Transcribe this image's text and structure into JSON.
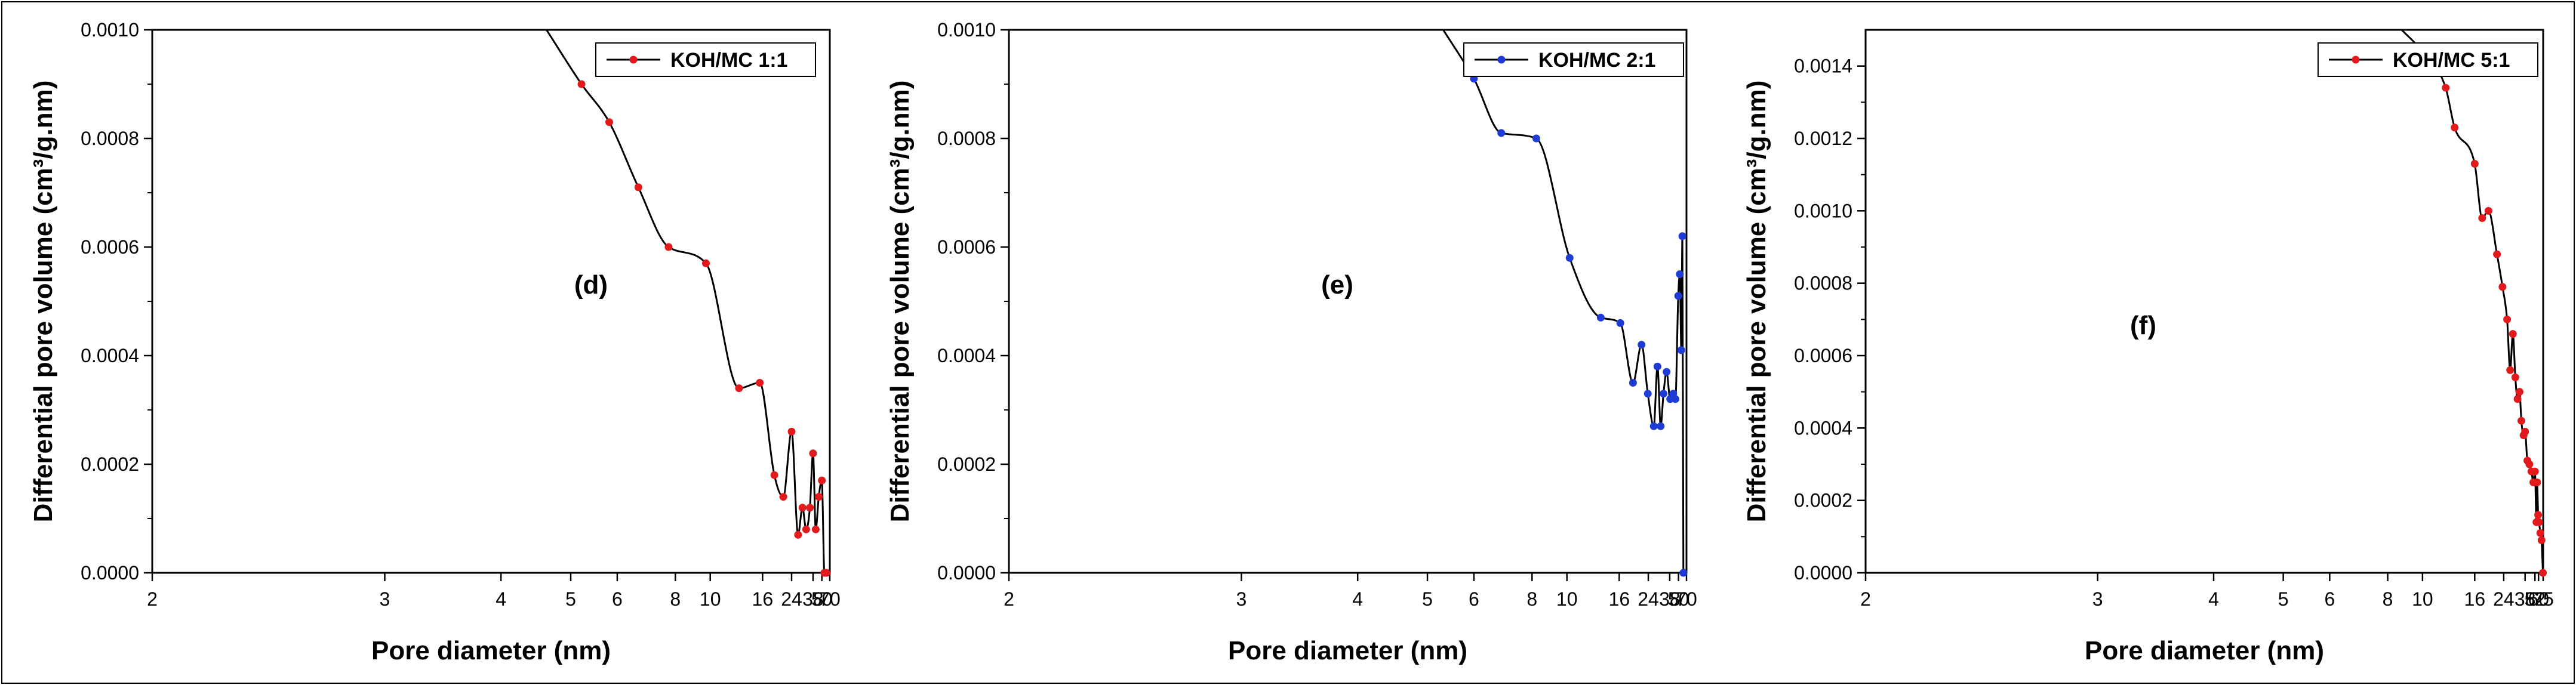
{
  "colors": {
    "line": "#000000",
    "frame": "#000000"
  },
  "chart_data": [
    {
      "type": "line",
      "panel_label": "(d)",
      "xlabel": "Pore diameter (nm)",
      "ylabel": "Differential pore volume (cm³/g.nm)",
      "xticks": [
        "2",
        "3",
        "4",
        "5",
        "6",
        "8",
        "10",
        "16",
        "24",
        "38",
        "50",
        "70"
      ],
      "yticks": [
        "0.0000",
        "0.0002",
        "0.0004",
        "0.0006",
        "0.0008",
        "0.0010"
      ],
      "ylim": [
        0,
        0.001
      ],
      "x_scale": "reciprocal",
      "legend": "top-right",
      "series": [
        {
          "name": "KOH/MC 1:1",
          "color": "#e31a1c",
          "x": [
            4.6,
            5.2,
            5.8,
            6.6,
            7.7,
            9.7,
            12.6,
            15.5,
            18.5,
            21.0,
            24.0,
            27.0,
            29.5,
            32.0,
            35.0,
            38.0,
            41.0,
            45.0,
            50.0,
            55.0,
            57.0,
            58.5,
            60.0
          ],
          "y": [
            0.001,
            0.0009,
            0.00083,
            0.00071,
            0.0006,
            0.00057,
            0.00034,
            0.00035,
            0.00018,
            0.00014,
            0.00026,
            7e-05,
            0.00012,
            8e-05,
            0.00012,
            0.00022,
            8e-05,
            0.00014,
            0.00017,
            0.0,
            0.0,
            0.0,
            0.0
          ]
        }
      ]
    },
    {
      "type": "line",
      "panel_label": "(e)",
      "xlabel": "Pore diameter (nm)",
      "ylabel": "Differential pore volume (cm³/g.nm)",
      "xticks": [
        "2",
        "3",
        "4",
        "5",
        "6",
        "8",
        "10",
        "16",
        "24",
        "38",
        "50",
        "70"
      ],
      "yticks": [
        "0.0000",
        "0.0002",
        "0.0004",
        "0.0006",
        "0.0008",
        "0.0010"
      ],
      "ylim": [
        0,
        0.001
      ],
      "x_scale": "reciprocal",
      "legend": "top-right",
      "series": [
        {
          "name": "KOH/MC 2:1",
          "color": "#1f3bd6",
          "x": [
            5.3,
            6.0,
            6.8,
            8.2,
            10.2,
            13.2,
            16.2,
            19.0,
            21.5,
            23.8,
            26.5,
            28.5,
            30.5,
            32.5,
            35.0,
            38.5,
            42.0,
            45.0,
            49.5,
            52.5,
            55.5,
            58.0,
            60.5
          ],
          "y": [
            0.001,
            0.00091,
            0.00081,
            0.0008,
            0.00058,
            0.00047,
            0.00046,
            0.00035,
            0.00042,
            0.00033,
            0.00027,
            0.00038,
            0.00027,
            0.00033,
            0.00037,
            0.00032,
            0.00033,
            0.00032,
            0.00051,
            0.00055,
            0.00041,
            0.00062,
            0.0
          ]
        }
      ]
    },
    {
      "type": "line",
      "panel_label": "(f)",
      "xlabel": "Pore diameter (nm)",
      "ylabel": "Differential pore volume (cm³/g.nm)",
      "xticks": [
        "2",
        "3",
        "4",
        "5",
        "6",
        "8",
        "10",
        "16",
        "24",
        "38",
        "52",
        "60",
        "75"
      ],
      "yticks": [
        "0.0000",
        "0.0002",
        "0.0004",
        "0.0006",
        "0.0008",
        "0.0010",
        "0.0012",
        "0.0014"
      ],
      "ylim": [
        0,
        0.0015
      ],
      "x_scale": "reciprocal",
      "legend": "top-right",
      "series": [
        {
          "name": "KOH/MC 5:1",
          "color": "#e31a1c",
          "x": [
            8.7,
            10.0,
            12.0,
            13.0,
            16.0,
            17.5,
            19.0,
            21.5,
            23.5,
            25.5,
            27.0,
            28.5,
            30.0,
            31.5,
            33.0,
            34.5,
            36.5,
            38.0,
            40.5,
            43.0,
            46.0,
            49.0,
            52.0,
            55.0,
            56.5,
            59.0,
            61.5,
            65.0,
            69.0,
            74.0
          ],
          "y": [
            0.0015,
            0.00144,
            0.00134,
            0.00123,
            0.00113,
            0.00098,
            0.001,
            0.00088,
            0.00079,
            0.0007,
            0.00056,
            0.00066,
            0.00054,
            0.00048,
            0.0005,
            0.00042,
            0.00038,
            0.00039,
            0.00031,
            0.0003,
            0.00028,
            0.00025,
            0.00028,
            0.00014,
            0.00025,
            0.00016,
            0.00014,
            0.00011,
            9e-05,
            0.0
          ]
        }
      ]
    }
  ]
}
